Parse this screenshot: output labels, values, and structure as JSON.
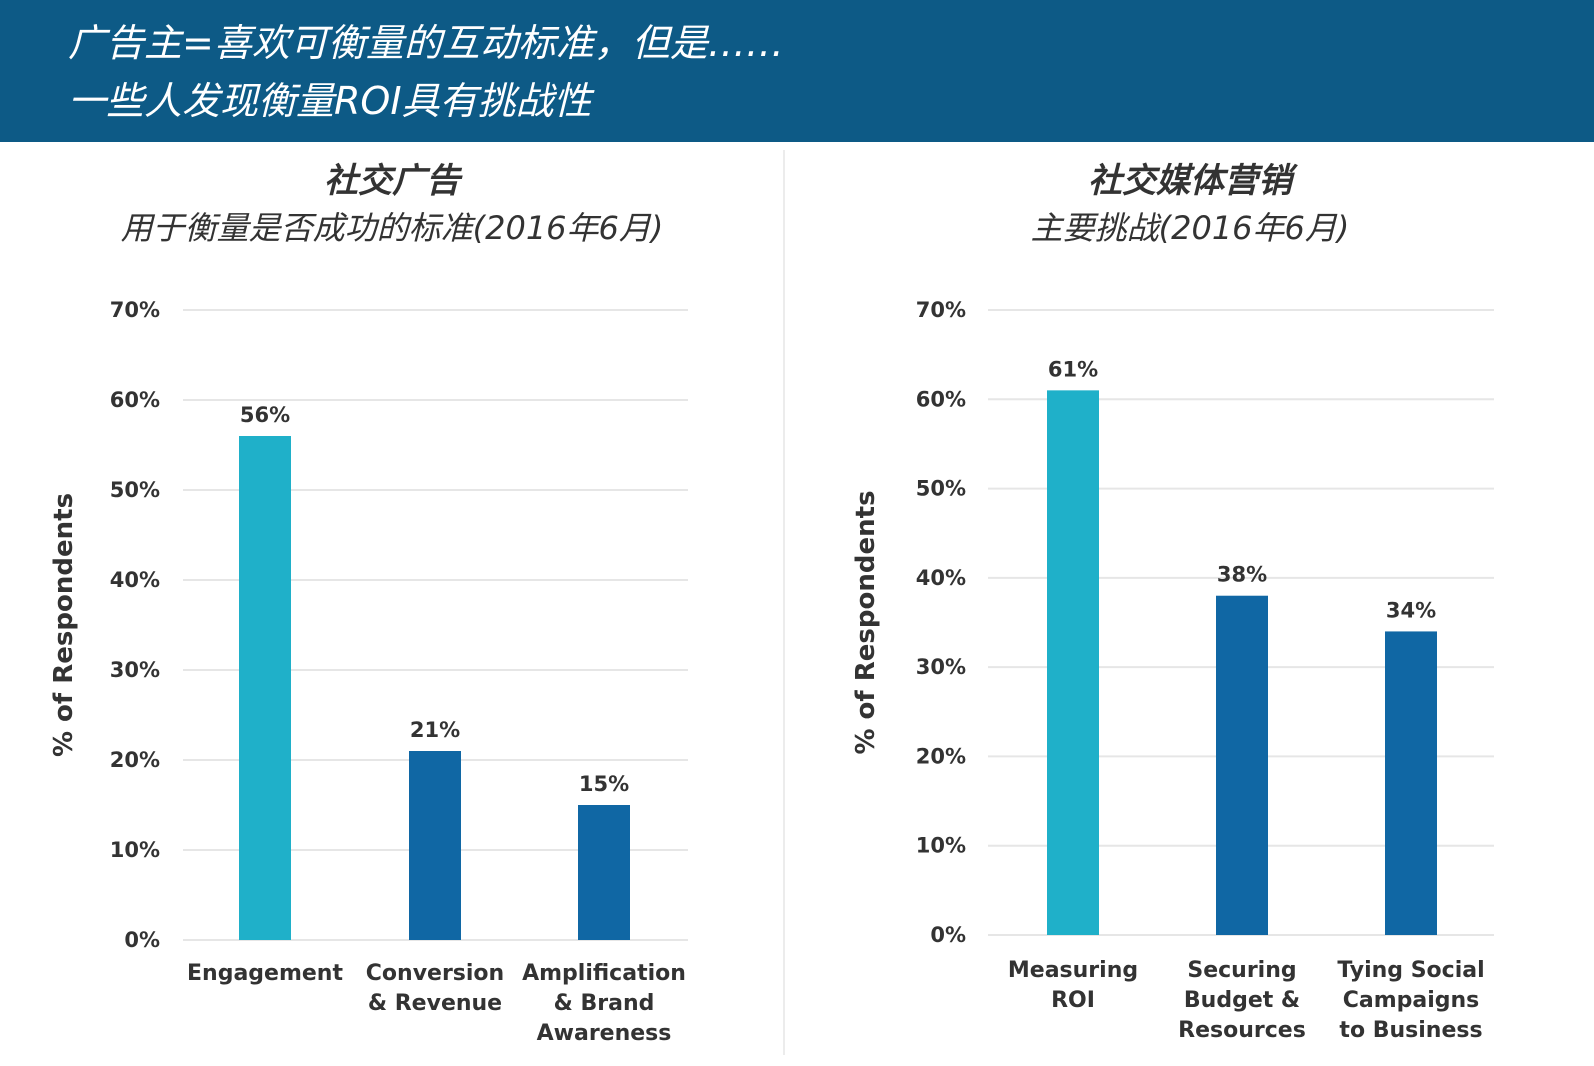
{
  "banner": {
    "line1": "广告主=喜欢可衡量的互动标准，但是……",
    "line2": "一些人发现衡量ROI具有挑战性",
    "color": "#0d5a86"
  },
  "colors": {
    "highlight": "#1fb0c9",
    "bar": "#1067a4",
    "grid": "#e6e6e6"
  },
  "chart_data": [
    {
      "type": "bar",
      "title": "社交广告",
      "subtitle": "用于衡量是否成功的标准(2016年6月)",
      "ylabel": "% of Respondents",
      "xlabel": "",
      "ylim": [
        0,
        70
      ],
      "yticks": [
        "0%",
        "10%",
        "20%",
        "30%",
        "40%",
        "50%",
        "60%",
        "70%"
      ],
      "ytick_values": [
        0,
        10,
        20,
        30,
        40,
        50,
        60,
        70
      ],
      "grid": true,
      "categories": [
        [
          "Engagement"
        ],
        [
          "Conversion",
          "& Revenue"
        ],
        [
          "Amplification",
          "& Brand",
          "Awareness"
        ]
      ],
      "values": [
        56,
        21,
        15
      ],
      "value_labels": [
        "56%",
        "21%",
        "15%"
      ],
      "bar_colors": [
        "highlight",
        "bar",
        "bar"
      ]
    },
    {
      "type": "bar",
      "title": "社交媒体营销",
      "subtitle": "主要挑战(2016年6月)",
      "ylabel": "% of Respondents",
      "xlabel": "",
      "ylim": [
        0,
        70
      ],
      "yticks": [
        "0%",
        "10%",
        "20%",
        "30%",
        "40%",
        "50%",
        "60%",
        "70%"
      ],
      "ytick_values": [
        0,
        10,
        20,
        30,
        40,
        50,
        60,
        70
      ],
      "grid": true,
      "categories": [
        [
          "Measuring",
          "ROI"
        ],
        [
          "Securing",
          "Budget &",
          "Resources"
        ],
        [
          "Tying Social",
          "Campaigns",
          "to Business"
        ]
      ],
      "values": [
        61,
        38,
        34
      ],
      "value_labels": [
        "61%",
        "38%",
        "34%"
      ],
      "bar_colors": [
        "highlight",
        "bar",
        "bar"
      ]
    }
  ]
}
